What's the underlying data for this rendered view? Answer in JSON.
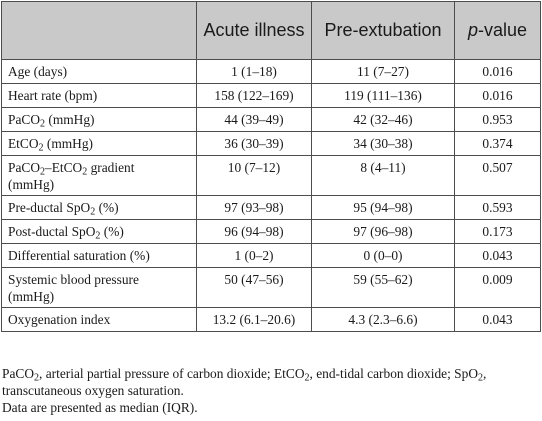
{
  "table": {
    "headers": {
      "blank": "",
      "acute": "Acute illness",
      "pre": "Pre-extubation",
      "pvalue_italic": "p",
      "pvalue_rest": "-value"
    },
    "rows": [
      {
        "label": "Age (days)",
        "acute": "1 (1–18)",
        "pre": "11 (7–27)",
        "p": "0.016"
      },
      {
        "label_parts": [
          "Heart rate (bpm)"
        ],
        "acute": "158 (122–169)",
        "pre": "119 (111–136)",
        "p": "0.016"
      },
      {
        "label_pre": "PaCO",
        "label_sub": "2",
        "label_post": " (mmHg)",
        "acute": "44 (39–49)",
        "pre": "42 (32–46)",
        "p": "0.953"
      },
      {
        "label_pre": "EtCO",
        "label_sub": "2",
        "label_post": " (mmHg)",
        "acute": "36 (30–39)",
        "pre": "34 (30–38)",
        "p": "0.374"
      },
      {
        "label_a": "PaCO",
        "label_a_sub": "2",
        "label_b": "–EtCO",
        "label_b_sub": "2",
        "label_c": " gradient",
        "label_d": "(mmHg)",
        "acute": "10 (7–12)",
        "pre": "8 (4–11)",
        "p": "0.507"
      },
      {
        "label_pre": "Pre-ductal SpO",
        "label_sub": "2",
        "label_post": " (%)",
        "acute": "97 (93–98)",
        "pre": "95 (94–98)",
        "p": "0.593"
      },
      {
        "label_pre": "Post-ductal SpO",
        "label_sub": "2",
        "label_post": " (%)",
        "acute": "96 (94–98)",
        "pre": "97 (96–98)",
        "p": "0.173"
      },
      {
        "label": "Differential saturation (%)",
        "acute": "1 (0–2)",
        "pre": "0 (0–0)",
        "p": "0.043"
      },
      {
        "label_line1": "Systemic blood pressure",
        "label_line2": "(mmHg)",
        "acute": "50 (47–56)",
        "pre": "59 (55–62)",
        "p": "0.009"
      },
      {
        "label": "Oxygenation index",
        "acute": "13.2 (6.1–20.6)",
        "pre": "4.3 (2.3–6.6)",
        "p": "0.043"
      }
    ]
  },
  "footnote": {
    "abbrev_1": "PaCO",
    "abbrev_1_sub": "2",
    "abbrev_2": ", arterial partial pressure of carbon dioxide; EtCO",
    "abbrev_2_sub": "2",
    "abbrev_3": ", end-tidal carbon dioxide; SpO",
    "abbrev_3_sub": "2",
    "abbrev_4": ", transcutaneous oxygen saturation.",
    "data_note": "Data are presented as median (IQR)."
  }
}
